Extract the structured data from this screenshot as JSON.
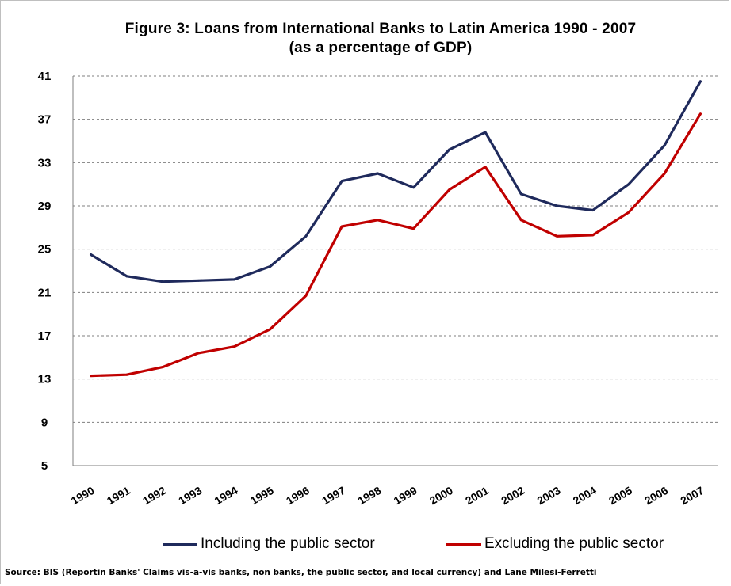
{
  "chart_data": {
    "type": "line",
    "title": "Figure 3: Loans from International Banks to Latin America 1990 - 2007",
    "subtitle": "(as a percentage of GDP)",
    "categories": [
      "1990",
      "1991",
      "1992",
      "1993",
      "1994",
      "1995",
      "1996",
      "1997",
      "1998",
      "1999",
      "2000",
      "2001",
      "2002",
      "2003",
      "2004",
      "2005",
      "2006",
      "2007"
    ],
    "series": [
      {
        "name": "Including the public sector",
        "color": "#1f2a5c",
        "values": [
          24.5,
          22.5,
          22.0,
          22.1,
          22.2,
          23.4,
          26.2,
          31.3,
          32.0,
          30.7,
          34.2,
          35.8,
          30.1,
          29.0,
          28.6,
          31.0,
          34.6,
          40.5
        ]
      },
      {
        "name": "Excluding the public sector",
        "color": "#c00000",
        "values": [
          13.3,
          13.4,
          14.1,
          15.4,
          16.0,
          17.6,
          20.7,
          27.1,
          27.7,
          26.9,
          30.5,
          32.6,
          27.7,
          26.2,
          26.3,
          28.4,
          32.0,
          37.5
        ]
      }
    ],
    "yticks": [
      5,
      9,
      13,
      17,
      21,
      25,
      29,
      33,
      37,
      41
    ],
    "ylim": [
      5,
      41
    ],
    "xlabel": "",
    "ylabel": "",
    "grid": "horizontal-dashed",
    "legend_position": "bottom"
  },
  "source_text": "Source: BIS (Reportin Banks' Claims vis-a-vis banks, non banks, the public sector, and local currency) and Lane Milesi-Ferretti"
}
